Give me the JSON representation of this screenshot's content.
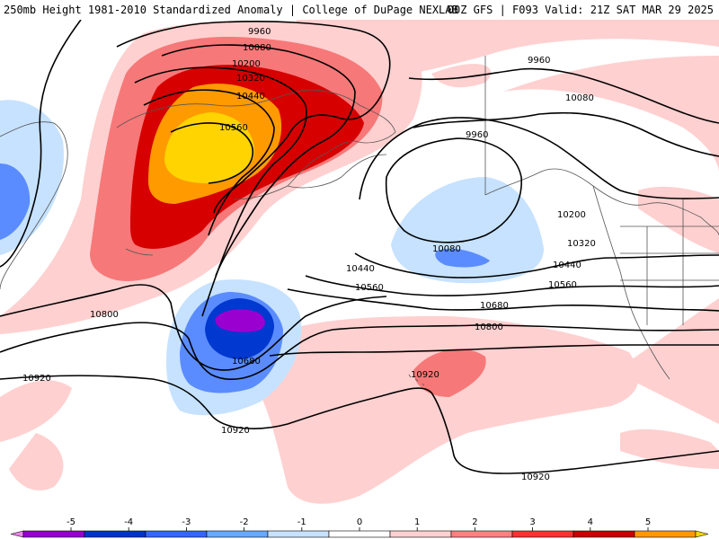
{
  "header": {
    "title_left": "250mb Height 1981-2010 Standardized Anomaly | College of DuPage NEXLAB",
    "title_right": "00Z GFS | F093 Valid: 21Z SAT MAR 29 2025"
  },
  "contour_labels": {
    "c1": "9960",
    "c2": "10080",
    "c3": "10200",
    "c4": "10320",
    "c5": "10440",
    "c6": "10560",
    "c7": "9960",
    "c8": "10080",
    "c9": "9960",
    "c10": "10200",
    "c11": "10080",
    "c12": "10320",
    "c13": "10440",
    "c14": "10440",
    "c15": "10560",
    "c16": "10560",
    "c17": "10680",
    "c18": "10800",
    "c19": "10800",
    "c20": "10680",
    "c21": "10920",
    "c22": "10920",
    "c23": "10920",
    "c24": "10920"
  },
  "colorbar": {
    "ticks": [
      "-5",
      "-4",
      "-3",
      "-2",
      "-1",
      "0",
      "1",
      "2",
      "3",
      "4",
      "5"
    ],
    "colors": [
      "#ee82ee",
      "#9400d3",
      "#0033cc",
      "#3366ff",
      "#66aaff",
      "#c6e2ff",
      "#ffffff",
      "#ffd0d0",
      "#ff8080",
      "#ff3030",
      "#cc0000",
      "#ff9900",
      "#ffd700"
    ]
  },
  "anomaly_colors": {
    "pos1": "#ffd0d0",
    "pos2": "#f77878",
    "pos3": "#d60000",
    "pos4": "#ff9a00",
    "pos5": "#ffd400",
    "neg1": "#c6e2ff",
    "neg2": "#5a8cff",
    "neg3": "#0038d0",
    "neg4": "#9a00d0"
  }
}
